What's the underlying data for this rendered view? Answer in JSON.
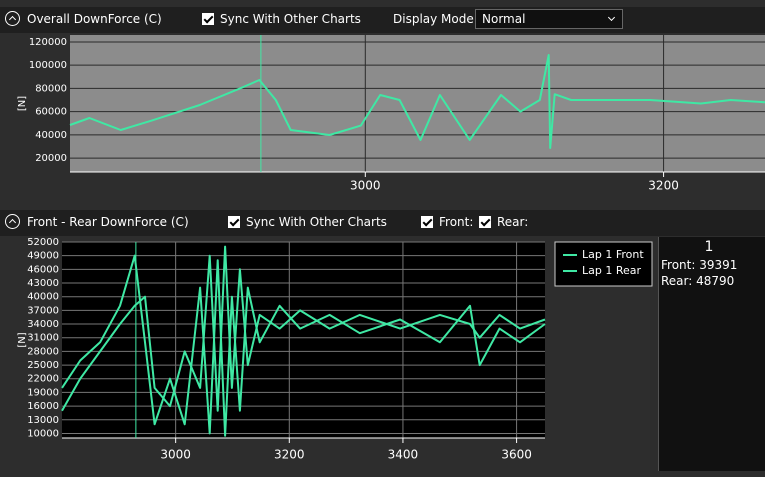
{
  "panels": [
    {
      "title": "Overall DownForce (C)",
      "sync_label": "Sync With Other Charts",
      "sync_checked": true,
      "display_mode_label": "Display Mode:",
      "display_mode": "Normal"
    },
    {
      "title": "Front - Rear DownForce (C)",
      "sync_label": "Sync With Other Charts",
      "sync_checked": true,
      "front_label": "Front:",
      "front_checked": true,
      "rear_label": "Rear:",
      "rear_checked": true
    }
  ],
  "chart_data": [
    {
      "type": "line",
      "ylabel": "[N]",
      "x": [
        2802,
        2815,
        2836,
        2856,
        2889,
        2916,
        2929,
        2940,
        2950,
        2976,
        2997,
        3010,
        3023,
        3037,
        3050,
        3070,
        3091,
        3104,
        3117,
        3123,
        3124,
        3127,
        3138,
        3158,
        3191,
        3225,
        3245,
        3268
      ],
      "series": [
        {
          "color": "#3fe8a4",
          "values": [
            48480,
            54510,
            44180,
            52000,
            65700,
            80000,
            87240,
            70000,
            44180,
            39870,
            48000,
            74320,
            70010,
            35560,
            74320,
            35560,
            74320,
            60000,
            70000,
            108770,
            28670,
            75000,
            70010,
            70010,
            70010,
            67000,
            70010,
            68000
          ]
        }
      ],
      "xlim": [
        2802,
        3268
      ],
      "xticks": [
        3000,
        3200
      ],
      "ylim": [
        8000,
        126000
      ],
      "yticks": [
        20000,
        40000,
        60000,
        80000,
        100000,
        120000
      ],
      "cursor_x": 2930,
      "grid": true
    },
    {
      "type": "line",
      "ylabel": "[N]",
      "x": [
        2800,
        2832,
        2867,
        2902,
        2928,
        2946,
        2963,
        2990,
        3016,
        3043,
        3060,
        3074,
        3087,
        3099,
        3113,
        3127,
        3148,
        3183,
        3219,
        3271,
        3324,
        3395,
        3465,
        3518,
        3535,
        3570,
        3606,
        3650
      ],
      "series": [
        {
          "name": "Lap 1 Front",
          "color": "#3fe8a4",
          "values": [
            20000,
            26000,
            30000,
            38000,
            49000,
            30000,
            12000,
            22000,
            12000,
            42000,
            10000,
            48000,
            9500,
            40000,
            15000,
            42000,
            30000,
            38000,
            33000,
            36000,
            32000,
            35000,
            30000,
            38000,
            25000,
            33000,
            30000,
            34000
          ]
        },
        {
          "name": "Lap 1 Rear",
          "color": "#3fe8a4",
          "values": [
            15000,
            22000,
            28000,
            34000,
            38000,
            40000,
            20000,
            16000,
            28000,
            20000,
            49000,
            15000,
            51000,
            20000,
            46000,
            25000,
            36000,
            33000,
            37000,
            33000,
            36000,
            33000,
            36000,
            34000,
            31000,
            36000,
            33000,
            35000
          ]
        }
      ],
      "xlim": [
        2800,
        3650
      ],
      "xticks": [
        3000,
        3200,
        3400,
        3600
      ],
      "ylim": [
        9000,
        52000
      ],
      "yticks": [
        10000,
        13000,
        16000,
        19000,
        22000,
        25000,
        28000,
        31000,
        34000,
        37000,
        40000,
        43000,
        46000,
        49000,
        52000
      ],
      "cursor_x": 2930,
      "grid": true,
      "legend": "top-right"
    }
  ],
  "readout": {
    "lap": "1",
    "front": "Front: 39391",
    "rear": "Rear: 48790"
  }
}
